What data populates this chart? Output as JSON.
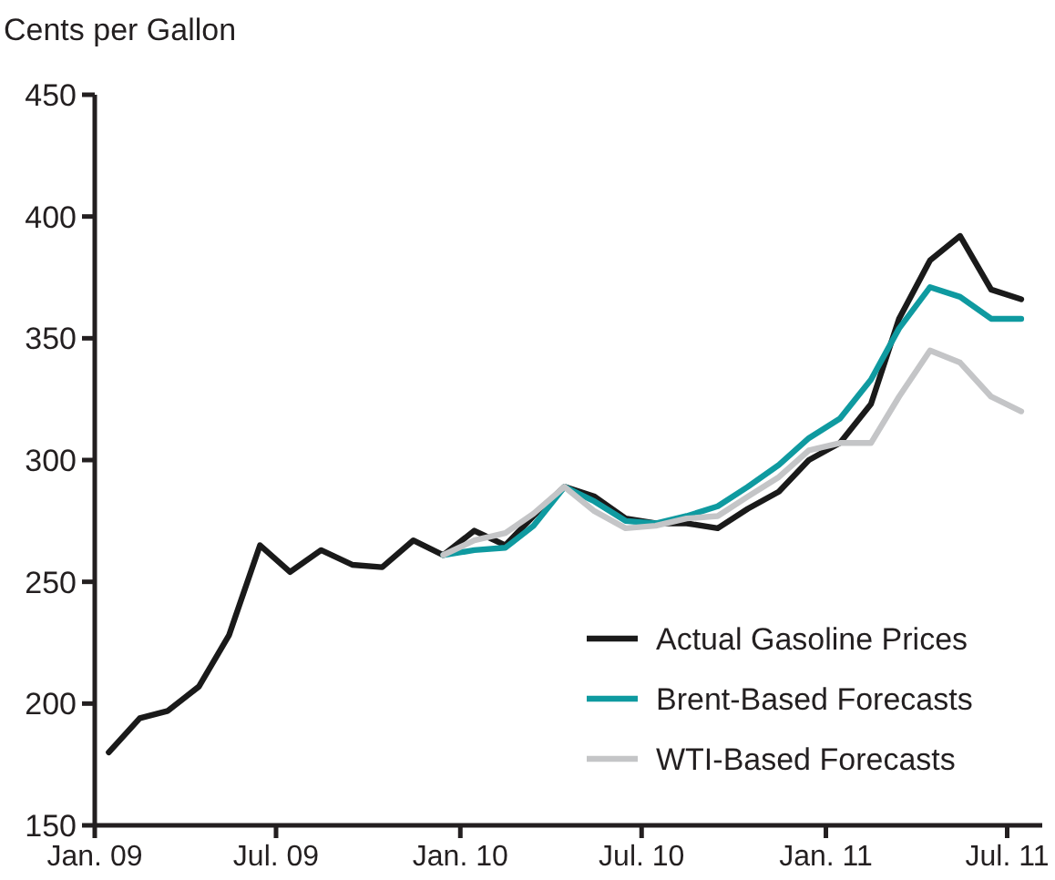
{
  "chart_data": {
    "type": "line",
    "ylabel": "Cents per Gallon",
    "xlim": [
      "2009-01-01",
      "2011-08-05"
    ],
    "xticks": [
      {
        "value": "2009-01-01",
        "label": "Jan. 09"
      },
      {
        "value": "2009-07-01",
        "label": "Jul. 09"
      },
      {
        "value": "2010-01-01",
        "label": "Jan. 10"
      },
      {
        "value": "2010-07-01",
        "label": "Jul. 10"
      },
      {
        "value": "2011-01-01",
        "label": "Jan. 11"
      },
      {
        "value": "2011-07-01",
        "label": "Jul. 11"
      }
    ],
    "ylim": [
      150,
      450
    ],
    "yticks": [
      150,
      200,
      250,
      300,
      350,
      400,
      450
    ],
    "grid": false,
    "legend": "bottom right",
    "marker": "none",
    "line_style": "solid",
    "series": [
      {
        "name": "Actual Gasoline Prices",
        "color": "#1a1a1a",
        "x": [
          "2009-01-15",
          "2009-02-15",
          "2009-03-15",
          "2009-04-15",
          "2009-05-15",
          "2009-06-15",
          "2009-07-15",
          "2009-08-15",
          "2009-09-15",
          "2009-10-15",
          "2009-11-15",
          "2009-12-15",
          "2010-01-15",
          "2010-02-15",
          "2010-03-15",
          "2010-04-15",
          "2010-05-15",
          "2010-06-15",
          "2010-07-15",
          "2010-08-15",
          "2010-09-15",
          "2010-10-15",
          "2010-11-15",
          "2010-12-15",
          "2011-01-15",
          "2011-02-15",
          "2011-03-15",
          "2011-04-15",
          "2011-05-15",
          "2011-06-15",
          "2011-07-15"
        ],
        "values": [
          180,
          194,
          197,
          207,
          228,
          265,
          254,
          263,
          257,
          256,
          267,
          261,
          271,
          265,
          277,
          289,
          285,
          276,
          274,
          274,
          272,
          280,
          287,
          300,
          307,
          323,
          358,
          382,
          392,
          370,
          366
        ]
      },
      {
        "name": "Brent-Based Forecasts",
        "color": "#0f9aa0",
        "x": [
          "2009-12-15",
          "2010-01-15",
          "2010-02-15",
          "2010-03-15",
          "2010-04-15",
          "2010-05-15",
          "2010-06-15",
          "2010-07-15",
          "2010-08-15",
          "2010-09-15",
          "2010-10-15",
          "2010-11-15",
          "2010-12-15",
          "2011-01-15",
          "2011-02-15",
          "2011-03-15",
          "2011-04-15",
          "2011-05-15",
          "2011-06-15",
          "2011-07-15"
        ],
        "values": [
          261,
          263,
          264,
          273,
          289,
          283,
          275,
          274,
          277,
          281,
          289,
          298,
          309,
          317,
          333,
          354,
          371,
          367,
          358,
          358
        ]
      },
      {
        "name": "WTI-Based Forecasts",
        "color": "#c4c5c7",
        "x": [
          "2009-12-15",
          "2010-01-15",
          "2010-02-15",
          "2010-03-15",
          "2010-04-15",
          "2010-05-15",
          "2010-06-15",
          "2010-07-15",
          "2010-08-15",
          "2010-09-15",
          "2010-10-15",
          "2010-11-15",
          "2010-12-15",
          "2011-01-15",
          "2011-02-15",
          "2011-03-15",
          "2011-04-15",
          "2011-05-15",
          "2011-06-15",
          "2011-07-15"
        ],
        "values": [
          261,
          267,
          270,
          278,
          289,
          279,
          272,
          273,
          276,
          277,
          285,
          293,
          304,
          307,
          307,
          326,
          345,
          340,
          326,
          320
        ]
      }
    ]
  }
}
